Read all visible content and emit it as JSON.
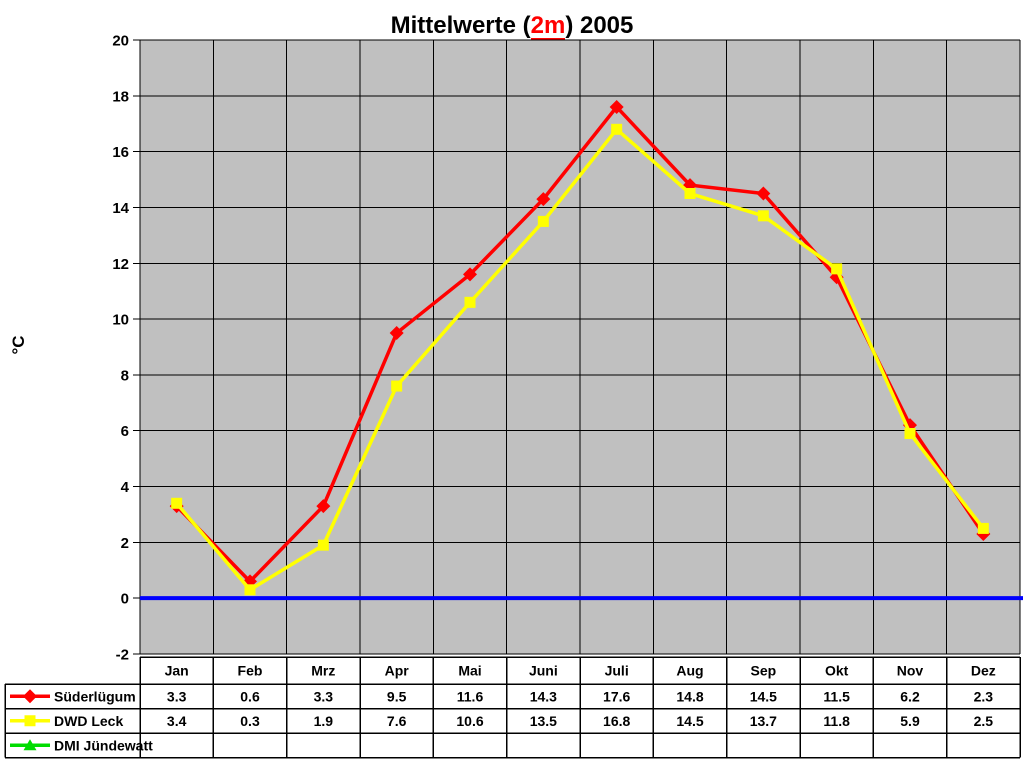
{
  "title": {
    "prefix": "Mittelwerte (",
    "highlight": "2m",
    "suffix": ") 2005"
  },
  "chart_data": {
    "type": "line",
    "title": "Mittelwerte (2m) 2005",
    "xlabel": "",
    "ylabel": "°C",
    "categories": [
      "Jan",
      "Feb",
      "Mrz",
      "Apr",
      "Mai",
      "Juni",
      "Juli",
      "Aug",
      "Sep",
      "Okt",
      "Nov",
      "Dez"
    ],
    "ylim": [
      -2,
      20
    ],
    "yticks": [
      20,
      18,
      16,
      14,
      12,
      10,
      8,
      6,
      4,
      2,
      0,
      -2
    ],
    "grid": true,
    "plot_bg_color": "#C0C0C0",
    "gridline_color": "#000000",
    "zero_line_color": "#0000FF",
    "legend_position": "left-of-data-table",
    "data_table_shown": true,
    "series": [
      {
        "name": "Süderlügum",
        "color": "#FF0000",
        "marker": "diamond",
        "values": [
          3.3,
          0.6,
          3.3,
          9.5,
          11.6,
          14.3,
          17.6,
          14.8,
          14.5,
          11.5,
          6.2,
          2.3
        ]
      },
      {
        "name": "DWD Leck",
        "color": "#FFFF00",
        "marker": "square",
        "values": [
          3.4,
          0.3,
          1.9,
          7.6,
          10.6,
          13.5,
          16.8,
          14.5,
          13.7,
          11.8,
          5.9,
          2.5
        ]
      },
      {
        "name": "DMI Jündewatt",
        "color": "#00DC00",
        "marker": "triangle",
        "values": []
      }
    ]
  }
}
